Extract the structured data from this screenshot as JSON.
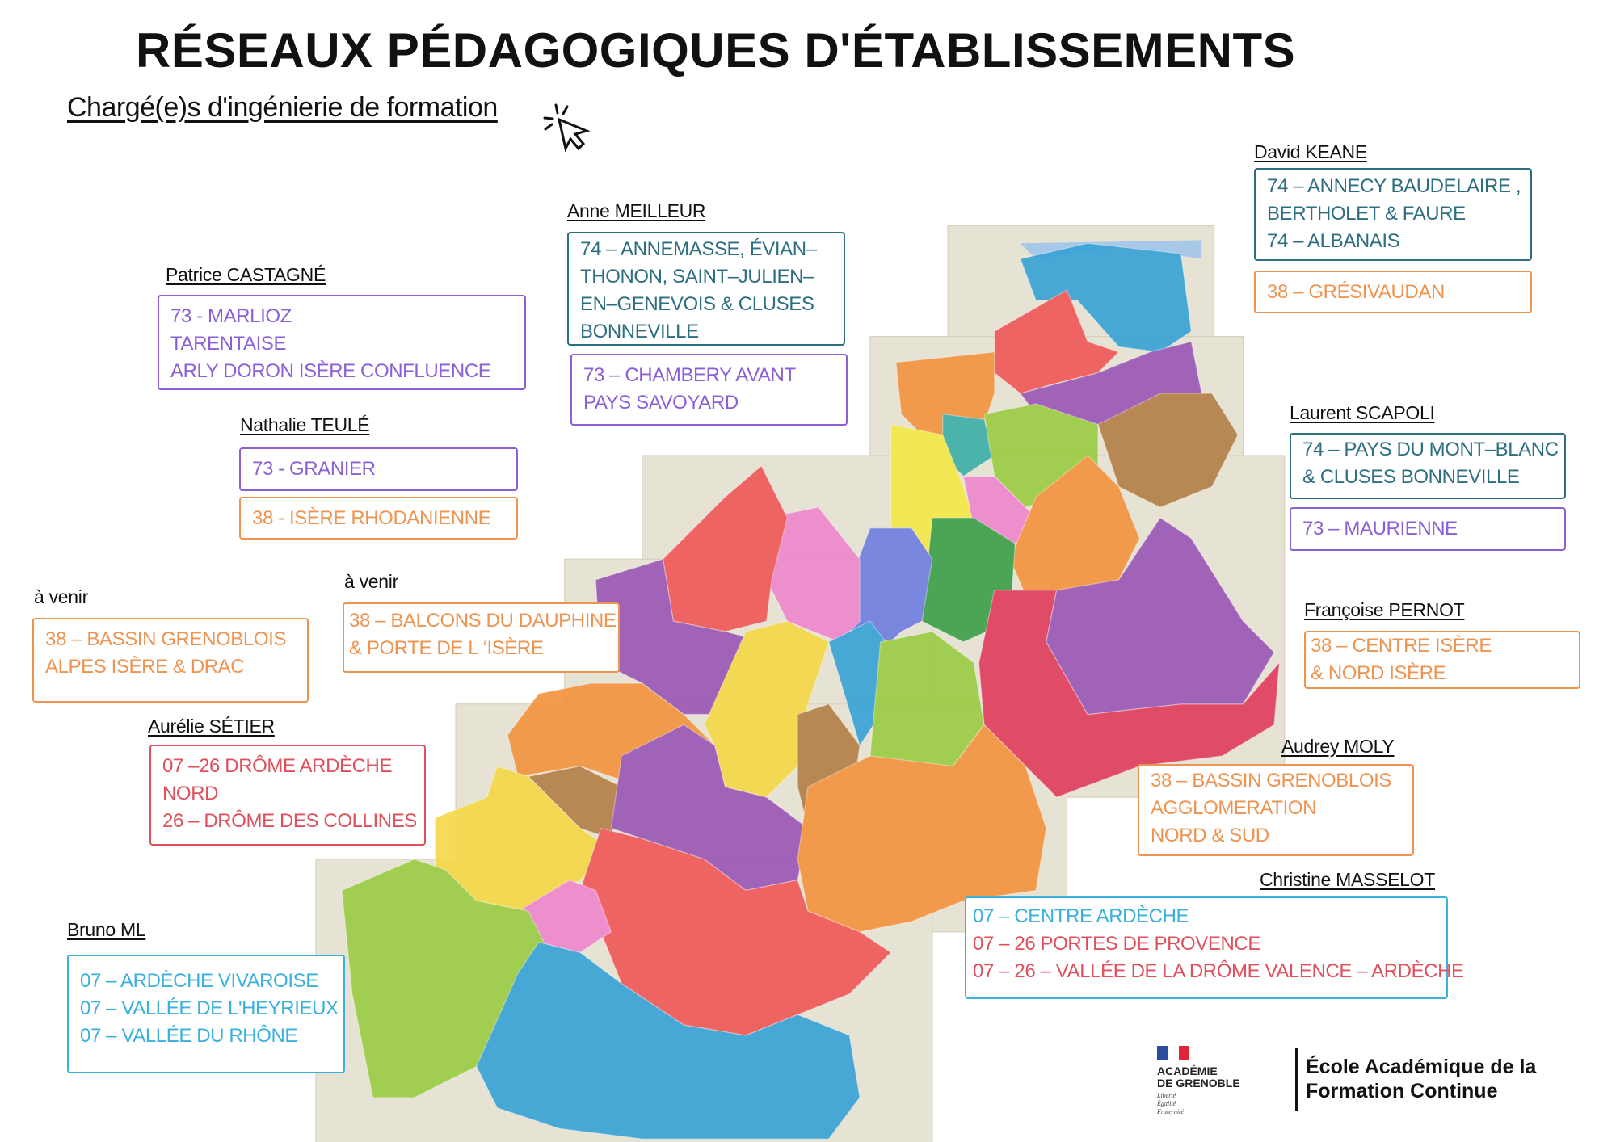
{
  "title": "RÉSEAUX PÉDAGOGIQUES D'ÉTABLISSEMENTS",
  "subtitle": "Chargé(e)s d'ingénierie de formation",
  "colors": {
    "purple": "#8b5fd6",
    "teal": "#2d6f80",
    "orange": "#ee9350",
    "red": "#e0505c",
    "cyan": "#3ab0dc"
  },
  "contacts": [
    {
      "name": "Patrice CASTAGNÉ",
      "boxes": [
        {
          "color": "purple",
          "lines": [
            "73 -  MARLIOZ",
            "TARENTAISE",
            "ARLY DORON ISÈRE CONFLUENCE"
          ]
        }
      ]
    },
    {
      "name": "Nathalie TEULÉ",
      "boxes": [
        {
          "color": "purple",
          "lines": [
            "73 -  GRANIER"
          ]
        },
        {
          "color": "orange",
          "lines": [
            "38 - ISÈRE RHODANIENNE"
          ]
        }
      ]
    },
    {
      "name": "Anne MEILLEUR",
      "boxes": [
        {
          "color": "teal",
          "lines": [
            "74 – ANNEMASSE, ÉVIAN–",
            "THONON, SAINT–JULIEN–",
            "EN–GENEVOIS & CLUSES",
            "BONNEVILLE"
          ]
        },
        {
          "color": "purple",
          "lines": [
            "73 – CHAMBERY AVANT",
            "PAYS SAVOYARD"
          ]
        }
      ]
    },
    {
      "name": "David KEANE",
      "boxes": [
        {
          "color": "teal",
          "lines": [
            "74 – ANNECY BAUDELAIRE ,",
            "BERTHOLET & FAURE",
            "74 – ALBANAIS"
          ]
        },
        {
          "color": "orange",
          "lines": [
            "38 – GRÉSIVAUDAN"
          ]
        }
      ]
    },
    {
      "name": "Laurent SCAPOLI",
      "boxes": [
        {
          "color": "teal",
          "lines": [
            "74 – PAYS DU MONT–BLANC",
            "& CLUSES BONNEVILLE"
          ]
        },
        {
          "color": "purple",
          "lines": [
            "73 – MAURIENNE"
          ]
        }
      ]
    },
    {
      "name": "Françoise PERNOT",
      "boxes": [
        {
          "color": "orange",
          "lines": [
            "38 – CENTRE ISÈRE",
            "& NORD ISÈRE"
          ]
        }
      ]
    },
    {
      "name": "Audrey MOLY",
      "boxes": [
        {
          "color": "orange",
          "lines": [
            "38 – BASSIN GRENOBLOIS",
            "AGGLOMERATION",
            " NORD & SUD"
          ]
        }
      ]
    },
    {
      "name": "Christine MASSELOT",
      "boxes": [
        {
          "color": "cyan",
          "lines": [
            "07 – CENTRE ARDÈCHE",
            "07 – 26 PORTES DE PROVENCE",
            "07 – 26 – VALLÉE DE LA DRÔME VALENCE – ARDÈCHE"
          ],
          "line_colors": [
            "cyan",
            "red",
            "red"
          ]
        }
      ]
    },
    {
      "name": "à venir",
      "boxes": [
        {
          "color": "orange",
          "lines": [
            "38 – BASSIN GRENOBLOIS",
            "ALPES ISÈRE & DRAC"
          ]
        }
      ]
    },
    {
      "name": "à venir",
      "boxes": [
        {
          "color": "orange",
          "lines": [
            "38 –  BALCONS DU DAUPHINE",
            " & PORTE DE L ‘ISÈRE"
          ]
        }
      ]
    },
    {
      "name": "Aurélie SÉTIER",
      "boxes": [
        {
          "color": "red",
          "lines": [
            "07 –26  DRÔME ARDÈCHE",
            "NORD",
            "26 – DRÔME  DES COLLINES"
          ]
        }
      ]
    },
    {
      "name": "Bruno ML",
      "boxes": [
        {
          "color": "cyan",
          "lines": [
            "07 – ARDÈCHE VIVAROISE",
            "07 –  VALLÉE DE L'HEYRIEUX",
            "07 – VALLÉE DU RHÔNE"
          ]
        }
      ]
    }
  ],
  "footer": {
    "logo": {
      "lines": [
        "ACADÉMIE",
        "DE GRENOBLE"
      ],
      "motto": [
        "Liberté",
        "Égalité",
        "Fraternité"
      ]
    },
    "school": [
      "École Académique de la",
      "Formation Continue"
    ]
  }
}
